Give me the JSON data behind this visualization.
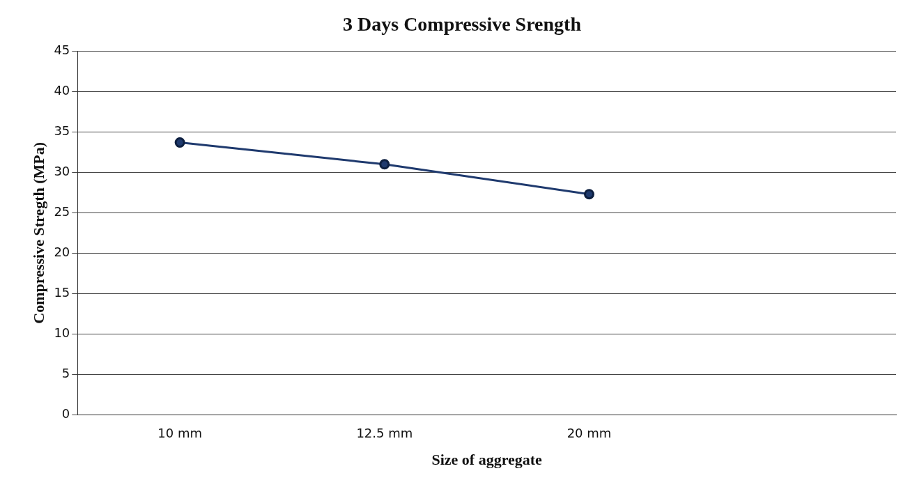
{
  "chart_data": {
    "type": "line",
    "title": "3 Days Compressive Srength",
    "xlabel": "Size of aggregate",
    "ylabel": "Compressive Stregth (MPa)",
    "categories": [
      "10 mm",
      "12.5 mm",
      "20 mm",
      null
    ],
    "series": [
      {
        "color": "#1f3a6e",
        "values": [
          33.7,
          31,
          27.3,
          null
        ]
      }
    ],
    "ylim": [
      0,
      45
    ],
    "yticks": [
      0,
      5,
      10,
      15,
      20,
      25,
      30,
      35,
      40,
      45
    ],
    "grid": "y",
    "legend": false,
    "marker": "circle",
    "line_style": "solid"
  }
}
